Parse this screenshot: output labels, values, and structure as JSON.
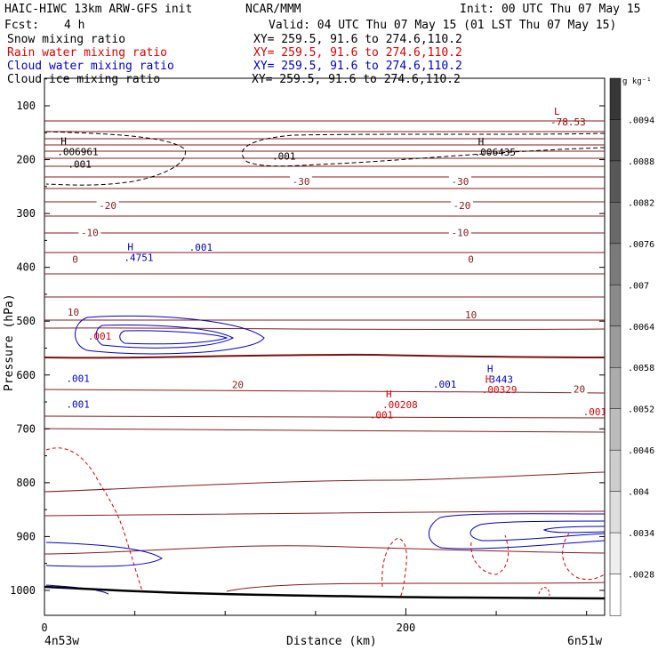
{
  "header": {
    "model": "HAIC-HIWC 13km ARW-GFS init",
    "org": "NCAR/MMM",
    "init": "Init: 00 UTC Thu 07 May 15",
    "fcst_label": "Fcst:",
    "fcst_value": "4 h",
    "valid": "Valid: 04 UTC Thu 07 May 15 (01 LST Thu 07 May 15)"
  },
  "legend": [
    {
      "label": "Snow mixing ratio",
      "xy": "XY= 259.5, 91.6 to 274.6,110.2",
      "color": "#000000"
    },
    {
      "label": "Rain water mixing ratio",
      "xy": "XY= 259.5, 91.6 to 274.6,110.2",
      "color": "#dd0000"
    },
    {
      "label": "Cloud water mixing ratio",
      "xy": "XY= 259.5, 91.6 to 274.6,110.2",
      "color": "#0000cc"
    },
    {
      "label": "Cloud ice mixing ratio",
      "xy": "XY= 259.5, 91.6 to 274.6,110.2",
      "color": "#000000"
    }
  ],
  "chart_data": {
    "type": "contour",
    "xlabel": "Distance (km)",
    "ylabel": "Pressure (hPa)",
    "x_ticks": [
      "0",
      "200"
    ],
    "x_end_labels": {
      "left": "4n53w",
      "right": "6n51w"
    },
    "x_range": [
      0,
      310
    ],
    "y_ticks": [
      "100",
      "200",
      "300",
      "400",
      "500",
      "600",
      "700",
      "800",
      "900",
      "1000"
    ],
    "y_range": [
      1050,
      30
    ],
    "colorbar": {
      "unit": "g kg⁻¹",
      "ticks": [
        ".0094",
        ".0088",
        ".0082",
        ".0076",
        ".007",
        ".0064",
        ".0058",
        ".0052",
        ".0046",
        ".004",
        ".0034",
        ".0028"
      ],
      "range": [
        0.0022,
        0.01
      ]
    },
    "temperature_contour_labels": [
      {
        "x": 142,
        "p": 240,
        "label": "-30"
      },
      {
        "x": 230,
        "p": 240,
        "label": "-30"
      },
      {
        "x": 35,
        "p": 285,
        "label": "-20"
      },
      {
        "x": 231,
        "p": 285,
        "label": "-20"
      },
      {
        "x": 25,
        "p": 335,
        "label": "-10"
      },
      {
        "x": 230,
        "p": 335,
        "label": "-10"
      },
      {
        "x": 17,
        "p": 385,
        "label": "0"
      },
      {
        "x": 236,
        "p": 385,
        "label": "0"
      },
      {
        "x": 16,
        "p": 483,
        "label": "10"
      },
      {
        "x": 236,
        "p": 488,
        "label": "10"
      },
      {
        "x": 107,
        "p": 618,
        "label": "20"
      },
      {
        "x": 296,
        "p": 626,
        "label": "20"
      }
    ],
    "extrema": [
      {
        "type": "L",
        "value": "-78.53",
        "x": 280,
        "p": 120,
        "color": "#990000"
      },
      {
        "type": "H",
        "value": ".006961",
        "x": 7,
        "p": 175,
        "color": "#000000"
      },
      {
        "type": "H",
        "value": ".006435",
        "x": 238,
        "p": 176,
        "color": "#000000"
      },
      {
        "type": "H",
        "value": ".4751",
        "x": 44,
        "p": 372,
        "color": "#0000cc"
      },
      {
        "type": "H",
        "value": ".3443",
        "x": 243,
        "p": 598,
        "color": "#0000cc"
      },
      {
        "type": "H",
        "value": ".00329",
        "x": 242,
        "p": 617,
        "color": "#dd0000"
      },
      {
        "type": "H",
        "value": ".00208",
        "x": 187,
        "p": 645,
        "color": "#dd0000"
      }
    ],
    "contour_labels": [
      {
        "text": ".001",
        "x": 126,
        "p": 193,
        "color": "#000000"
      },
      {
        "text": ".001",
        "x": 13,
        "p": 208,
        "color": "#000000"
      },
      {
        "text": ".001",
        "x": 80,
        "p": 363,
        "color": "#0000cc"
      },
      {
        "text": ".001",
        "x": 24,
        "p": 528,
        "color": "#dd0000"
      },
      {
        "text": ".001",
        "x": 12,
        "p": 606,
        "color": "#0000cc"
      },
      {
        "text": ".001",
        "x": 12,
        "p": 654,
        "color": "#0000cc"
      },
      {
        "text": ".001",
        "x": 215,
        "p": 617,
        "color": "#0000cc"
      },
      {
        "text": ".001",
        "x": 180,
        "p": 674,
        "color": "#dd0000"
      },
      {
        "text": ".001",
        "x": 298,
        "p": 668,
        "color": "#dd0000"
      }
    ]
  }
}
